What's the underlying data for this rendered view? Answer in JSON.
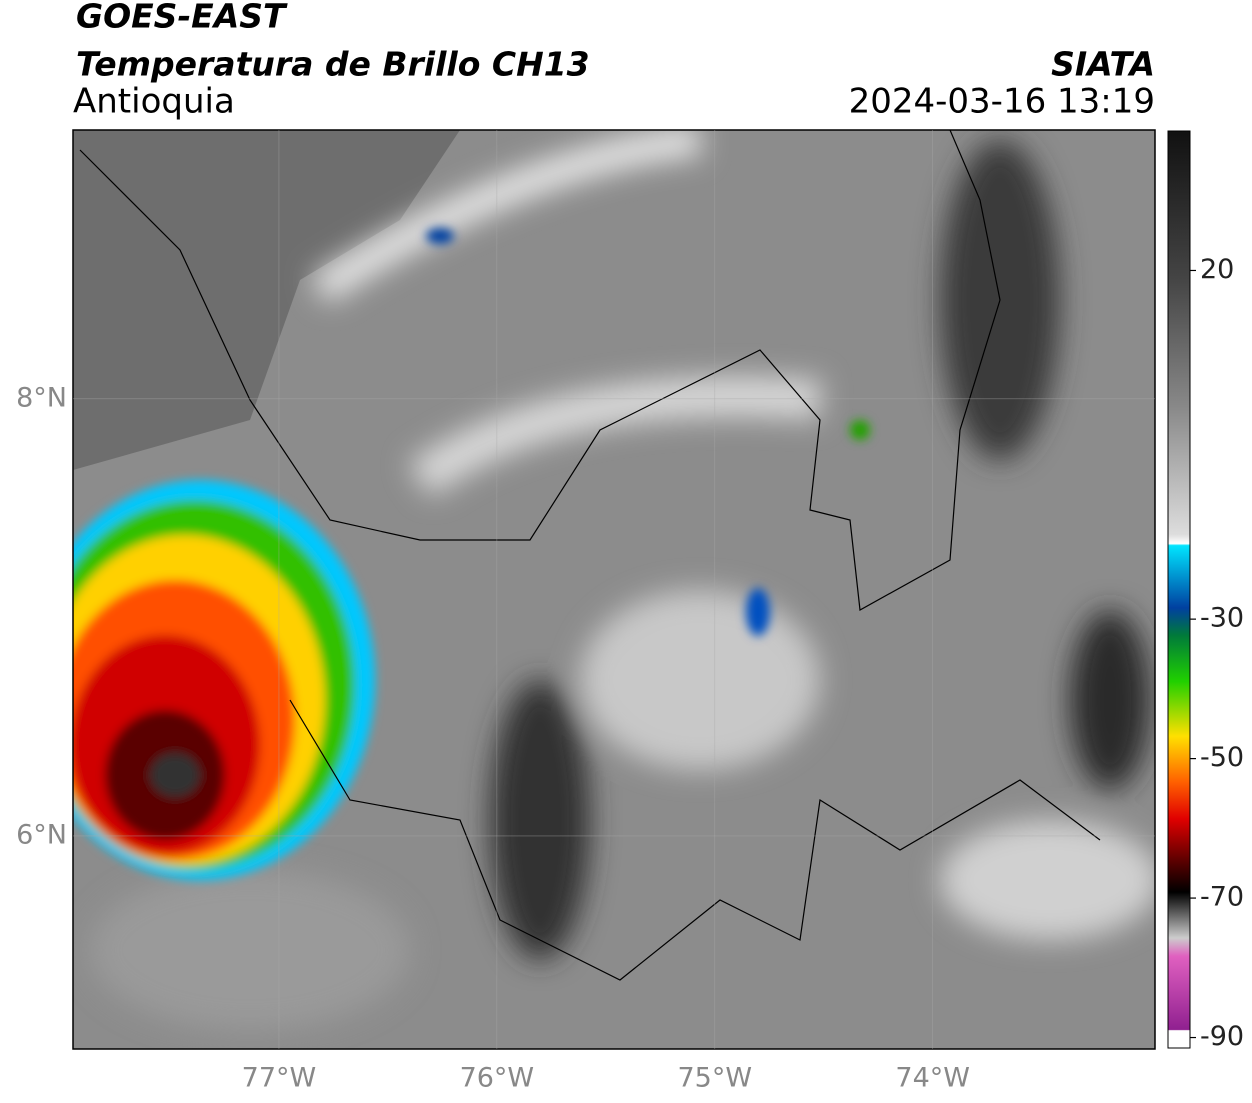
{
  "header": {
    "title": "GOES-EAST",
    "subtitle": "Temperatura de Brillo CH13",
    "region": "Antioquia",
    "source": "SIATA",
    "timestamp": "2024-03-16 13:19"
  },
  "chart_data": {
    "type": "map",
    "xlim": [
      -77.945,
      -72.98
    ],
    "ylim": [
      5.025,
      9.23
    ],
    "xticks": [
      {
        "value": -77,
        "label": "77°W"
      },
      {
        "value": -76,
        "label": "76°W"
      },
      {
        "value": -75,
        "label": "75°W"
      },
      {
        "value": -74,
        "label": "74°W"
      }
    ],
    "yticks": [
      {
        "value": 8,
        "label": "8°N"
      },
      {
        "value": 6,
        "label": "6°N"
      }
    ],
    "grid": true,
    "colorbar": {
      "lim": [
        -91.5,
        40
      ],
      "ticks": [
        20,
        -30,
        -50,
        -70,
        -90
      ]
    }
  }
}
